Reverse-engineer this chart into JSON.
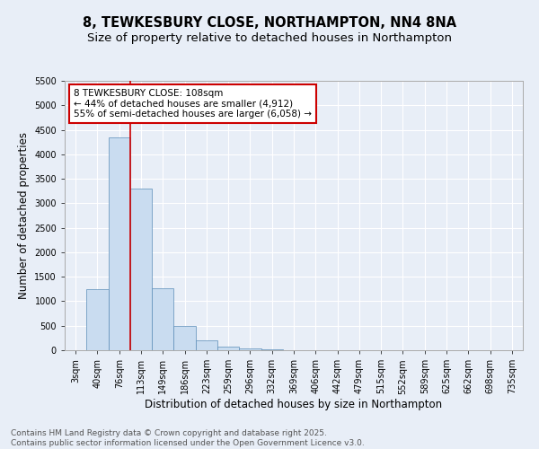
{
  "title": "8, TEWKESBURY CLOSE, NORTHAMPTON, NN4 8NA",
  "subtitle": "Size of property relative to detached houses in Northampton",
  "xlabel": "Distribution of detached houses by size in Northampton",
  "ylabel": "Number of detached properties",
  "bar_color": "#c9dcf0",
  "bar_edge_color": "#5b8db8",
  "background_color": "#e8eef7",
  "plot_bg_color": "#e8eef7",
  "grid_color": "#ffffff",
  "categories": [
    "3sqm",
    "40sqm",
    "76sqm",
    "113sqm",
    "149sqm",
    "186sqm",
    "223sqm",
    "259sqm",
    "296sqm",
    "332sqm",
    "369sqm",
    "406sqm",
    "442sqm",
    "479sqm",
    "515sqm",
    "552sqm",
    "589sqm",
    "625sqm",
    "662sqm",
    "698sqm",
    "735sqm"
  ],
  "values": [
    0,
    1250,
    4350,
    3300,
    1270,
    490,
    195,
    80,
    35,
    10,
    3,
    1,
    0,
    0,
    0,
    0,
    0,
    0,
    0,
    0,
    0
  ],
  "ylim": [
    0,
    5500
  ],
  "yticks": [
    0,
    500,
    1000,
    1500,
    2000,
    2500,
    3000,
    3500,
    4000,
    4500,
    5000,
    5500
  ],
  "vline_color": "#cc0000",
  "annotation_title": "8 TEWKESBURY CLOSE: 108sqm",
  "annotation_line1": "← 44% of detached houses are smaller (4,912)",
  "annotation_line2": "55% of semi-detached houses are larger (6,058) →",
  "annotation_box_color": "#cc0000",
  "footer_line1": "Contains HM Land Registry data © Crown copyright and database right 2025.",
  "footer_line2": "Contains public sector information licensed under the Open Government Licence v3.0.",
  "title_fontsize": 10.5,
  "subtitle_fontsize": 9.5,
  "tick_fontsize": 7,
  "axis_label_fontsize": 8.5,
  "footer_fontsize": 6.5,
  "annotation_fontsize": 7.5
}
